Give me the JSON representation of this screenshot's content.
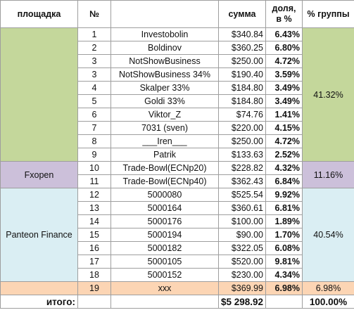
{
  "headers": {
    "platform": "площадка",
    "num": "№",
    "account": "",
    "sum": "сумма",
    "share": "доля, в %",
    "group_share": "% группы"
  },
  "groups": [
    {
      "name": "",
      "group_share": "41.32%",
      "color": "#c4d79b"
    },
    {
      "name": "Fxopen",
      "group_share": "11.16%",
      "color": "#ccc0da"
    },
    {
      "name": "Panteon Finance",
      "group_share": "40.54%",
      "color": "#daeef3"
    },
    {
      "name": "",
      "group_share": "6.98%",
      "color": "#fcd5b4"
    }
  ],
  "rows": [
    {
      "num": "1",
      "account": "Investobolin",
      "sum": "$340.84",
      "share": "6.43%"
    },
    {
      "num": "2",
      "account": "Boldinov",
      "sum": "$360.25",
      "share": "6.80%"
    },
    {
      "num": "3",
      "account": "NotShowBusiness",
      "sum": "$250.00",
      "share": "4.72%"
    },
    {
      "num": "3",
      "account": "NotShowBusiness 34%",
      "sum": "$190.40",
      "share": "3.59%"
    },
    {
      "num": "4",
      "account": "Skalper 33%",
      "sum": "$184.80",
      "share": "3.49%"
    },
    {
      "num": "5",
      "account": "Goldi 33%",
      "sum": "$184.80",
      "share": "3.49%"
    },
    {
      "num": "6",
      "account": "Viktor_Z",
      "sum": "$74.76",
      "share": "1.41%"
    },
    {
      "num": "7",
      "account": "7031 (sven)",
      "sum": "$220.00",
      "share": "4.15%"
    },
    {
      "num": "8",
      "account": "___Iren___",
      "sum": "$250.00",
      "share": "4.72%"
    },
    {
      "num": "9",
      "account": "Patrik",
      "sum": "$133.63",
      "share": "2.52%"
    },
    {
      "num": "10",
      "account": "Trade-Bowl(ECNp20)",
      "sum": "$228.82",
      "share": "4.32%"
    },
    {
      "num": "11",
      "account": "Trade-Bowl(ECNp40)",
      "sum": "$362.43",
      "share": "6.84%"
    },
    {
      "num": "12",
      "account": "5000080",
      "sum": "$525.54",
      "share": "9.92%"
    },
    {
      "num": "13",
      "account": "5000164",
      "sum": "$360.61",
      "share": "6.81%"
    },
    {
      "num": "14",
      "account": "5000176",
      "sum": "$100.00",
      "share": "1.89%"
    },
    {
      "num": "15",
      "account": "5000194",
      "sum": "$90.00",
      "share": "1.70%"
    },
    {
      "num": "16",
      "account": "5000182",
      "sum": "$322.05",
      "share": "6.08%"
    },
    {
      "num": "17",
      "account": "5000105",
      "sum": "$520.00",
      "share": "9.81%"
    },
    {
      "num": "18",
      "account": "5000152",
      "sum": "$230.00",
      "share": "4.34%"
    },
    {
      "num": "19",
      "account": "xxx",
      "sum": "$369.99",
      "share": "6.98%"
    }
  ],
  "totals": {
    "label": "итого:",
    "sum": "$5 298.92",
    "group_share": "100.00%"
  }
}
